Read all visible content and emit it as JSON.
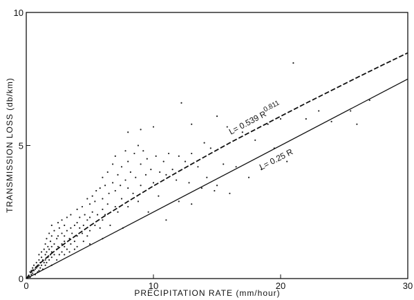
{
  "chart_data": {
    "type": "scatter",
    "title": "",
    "xlabel": "PRECIPITATION RATE (mm/hour)",
    "ylabel": "TRANSMISSION LOSS (db/km)",
    "xlim": [
      0,
      30
    ],
    "ylim": [
      0,
      10
    ],
    "x_ticks": [
      0,
      10,
      20,
      30
    ],
    "y_ticks": [
      0,
      5,
      10
    ],
    "grid": false,
    "legend": "none",
    "annotations": [
      {
        "text_base": "L= 0.539 R",
        "text_sup": "0.811",
        "series": "fit-dashed"
      },
      {
        "text_base": "L= 0.25 R",
        "text_sup": "",
        "series": "theory-solid"
      }
    ],
    "series": [
      {
        "style": "dashed",
        "equation": {
          "a": 0.539,
          "b": 0.811
        },
        "x": [
          0,
          0.5,
          1,
          2,
          3,
          4,
          5,
          6,
          8,
          10,
          12,
          14,
          16,
          18,
          20,
          22,
          24,
          26,
          28,
          30
        ],
        "y": [
          0,
          0.31,
          0.54,
          0.95,
          1.31,
          1.65,
          1.98,
          2.3,
          2.9,
          3.48,
          4.03,
          4.57,
          5.1,
          5.6,
          6.1,
          6.59,
          7.07,
          7.55,
          8.02,
          8.48
        ]
      },
      {
        "style": "solid",
        "equation": {
          "a": 0.25,
          "b": 1
        },
        "x": [
          0,
          30
        ],
        "y": [
          0,
          7.5
        ]
      },
      {
        "style": "points",
        "points": [
          [
            0.2,
            0.1
          ],
          [
            0.3,
            0.25
          ],
          [
            0.3,
            0.05
          ],
          [
            0.4,
            0.3
          ],
          [
            0.4,
            0.15
          ],
          [
            0.5,
            0.4
          ],
          [
            0.5,
            0.2
          ],
          [
            0.6,
            0.5
          ],
          [
            0.6,
            0.3
          ],
          [
            0.7,
            0.35
          ],
          [
            0.7,
            0.15
          ],
          [
            0.8,
            0.6
          ],
          [
            0.8,
            0.4
          ],
          [
            0.9,
            0.45
          ],
          [
            0.9,
            0.25
          ],
          [
            1.0,
            0.7
          ],
          [
            1.0,
            0.5
          ],
          [
            1.0,
            0.3
          ],
          [
            1.0,
            0.9
          ],
          [
            1.1,
            0.6
          ],
          [
            1.1,
            0.4
          ],
          [
            1.2,
            0.8
          ],
          [
            1.2,
            1.0
          ],
          [
            1.2,
            0.5
          ],
          [
            1.3,
            0.7
          ],
          [
            1.3,
            0.35
          ],
          [
            1.4,
            1.1
          ],
          [
            1.4,
            0.6
          ],
          [
            1.5,
            1.3
          ],
          [
            1.5,
            0.9
          ],
          [
            1.5,
            0.5
          ],
          [
            1.5,
            0.7
          ],
          [
            1.6,
            1.5
          ],
          [
            1.6,
            1.0
          ],
          [
            1.6,
            0.6
          ],
          [
            1.7,
            1.2
          ],
          [
            1.7,
            0.8
          ],
          [
            1.8,
            1.7
          ],
          [
            1.8,
            1.1
          ],
          [
            1.8,
            0.7
          ],
          [
            1.9,
            1.4
          ],
          [
            1.9,
            0.9
          ],
          [
            2.0,
            2.0
          ],
          [
            2.0,
            1.6
          ],
          [
            2.0,
            1.2
          ],
          [
            2.0,
            0.8
          ],
          [
            2.0,
            1.0
          ],
          [
            2.0,
            0.5
          ],
          [
            2.2,
            1.8
          ],
          [
            2.2,
            1.3
          ],
          [
            2.2,
            0.9
          ],
          [
            2.4,
            1.5
          ],
          [
            2.4,
            1.1
          ],
          [
            2.4,
            0.7
          ],
          [
            2.5,
            2.1
          ],
          [
            2.5,
            1.6
          ],
          [
            2.5,
            1.2
          ],
          [
            2.6,
            0.9
          ],
          [
            2.6,
            1.9
          ],
          [
            2.8,
            1.7
          ],
          [
            2.8,
            1.3
          ],
          [
            2.8,
            1.0
          ],
          [
            2.8,
            2.2
          ],
          [
            3.0,
            2.0
          ],
          [
            3.0,
            1.6
          ],
          [
            3.0,
            1.2
          ],
          [
            3.0,
            0.9
          ],
          [
            3.0,
            1.4
          ],
          [
            3.2,
            1.8
          ],
          [
            3.2,
            1.1
          ],
          [
            3.2,
            2.3
          ],
          [
            3.4,
            1.5
          ],
          [
            3.4,
            1.0
          ],
          [
            3.5,
            2.4
          ],
          [
            3.5,
            1.9
          ],
          [
            3.5,
            1.3
          ],
          [
            3.6,
            1.7
          ],
          [
            3.8,
            2.0
          ],
          [
            3.8,
            1.4
          ],
          [
            3.8,
            1.1
          ],
          [
            4.0,
            2.6
          ],
          [
            4.0,
            2.1
          ],
          [
            4.0,
            1.6
          ],
          [
            4.0,
            1.2
          ],
          [
            4.2,
            1.9
          ],
          [
            4.2,
            2.3
          ],
          [
            4.4,
            2.7
          ],
          [
            4.4,
            1.7
          ],
          [
            4.5,
            2.0
          ],
          [
            4.5,
            1.4
          ],
          [
            4.6,
            2.4
          ],
          [
            4.8,
            2.2
          ],
          [
            4.8,
            1.6
          ],
          [
            4.8,
            3.0
          ],
          [
            5.0,
            2.8
          ],
          [
            5.0,
            2.3
          ],
          [
            5.0,
            1.8
          ],
          [
            5.0,
            1.3
          ],
          [
            5.2,
            3.1
          ],
          [
            5.2,
            2.5
          ],
          [
            5.4,
            2.0
          ],
          [
            5.4,
            2.9
          ],
          [
            5.5,
            3.3
          ],
          [
            5.6,
            2.4
          ],
          [
            5.8,
            1.9
          ],
          [
            5.8,
            3.4
          ],
          [
            6.0,
            3.0
          ],
          [
            6.0,
            2.6
          ],
          [
            6.0,
            2.2
          ],
          [
            6.0,
            1.5
          ],
          [
            6.0,
            3.8
          ],
          [
            6.2,
            3.5
          ],
          [
            6.2,
            2.4
          ],
          [
            6.4,
            4.0
          ],
          [
            6.4,
            2.8
          ],
          [
            6.5,
            3.2
          ],
          [
            6.6,
            2.0
          ],
          [
            6.8,
            3.6
          ],
          [
            6.8,
            4.3
          ],
          [
            7.0,
            3.3
          ],
          [
            7.0,
            2.7
          ],
          [
            7.0,
            4.6
          ],
          [
            7.2,
            3.9
          ],
          [
            7.2,
            2.5
          ],
          [
            7.4,
            3.5
          ],
          [
            7.5,
            4.2
          ],
          [
            7.5,
            3.0
          ],
          [
            7.6,
            1.9
          ],
          [
            7.8,
            4.8
          ],
          [
            7.8,
            3.7
          ],
          [
            8.0,
            5.5
          ],
          [
            8.0,
            4.4
          ],
          [
            8.0,
            3.4
          ],
          [
            8.0,
            2.7
          ],
          [
            8.2,
            4.0
          ],
          [
            8.4,
            3.2
          ],
          [
            8.5,
            4.7
          ],
          [
            8.6,
            3.8
          ],
          [
            8.8,
            5.0
          ],
          [
            8.8,
            2.9
          ],
          [
            9.0,
            4.3
          ],
          [
            9.0,
            3.5
          ],
          [
            9.0,
            5.6
          ],
          [
            9.2,
            4.8
          ],
          [
            9.4,
            3.9
          ],
          [
            9.5,
            4.5
          ],
          [
            9.6,
            2.5
          ],
          [
            9.8,
            4.1
          ],
          [
            10.0,
            5.7
          ],
          [
            10.0,
            3.6
          ],
          [
            10.2,
            4.6
          ],
          [
            10.4,
            3.1
          ],
          [
            10.5,
            4.0
          ],
          [
            10.8,
            4.4
          ],
          [
            11.0,
            2.2
          ],
          [
            11.0,
            3.9
          ],
          [
            11.2,
            4.7
          ],
          [
            11.5,
            4.1
          ],
          [
            11.8,
            3.7
          ],
          [
            12.0,
            4.6
          ],
          [
            12.0,
            2.9
          ],
          [
            12.2,
            6.6
          ],
          [
            12.5,
            4.4
          ],
          [
            12.8,
            3.6
          ],
          [
            13.0,
            5.8
          ],
          [
            13.0,
            4.7
          ],
          [
            13.0,
            2.8
          ],
          [
            13.5,
            4.2
          ],
          [
            13.8,
            3.4
          ],
          [
            14.0,
            5.1
          ],
          [
            14.2,
            3.8
          ],
          [
            14.5,
            4.9
          ],
          [
            14.8,
            3.3
          ],
          [
            15.0,
            6.1
          ],
          [
            15.0,
            3.5
          ],
          [
            15.5,
            4.3
          ],
          [
            15.8,
            5.7
          ],
          [
            16.0,
            3.2
          ],
          [
            16.5,
            4.2
          ],
          [
            17.0,
            5.5
          ],
          [
            17.5,
            3.8
          ],
          [
            18.0,
            5.2
          ],
          [
            18.5,
            4.1
          ],
          [
            19.0,
            5.8
          ],
          [
            19.5,
            4.9
          ],
          [
            20.0,
            6.0
          ],
          [
            20.5,
            4.4
          ],
          [
            21.0,
            8.1
          ],
          [
            22.0,
            6.0
          ],
          [
            23.0,
            6.3
          ],
          [
            24.0,
            5.9
          ],
          [
            25.5,
            6.3
          ],
          [
            26.0,
            5.8
          ],
          [
            27.0,
            6.7
          ]
        ]
      }
    ]
  }
}
